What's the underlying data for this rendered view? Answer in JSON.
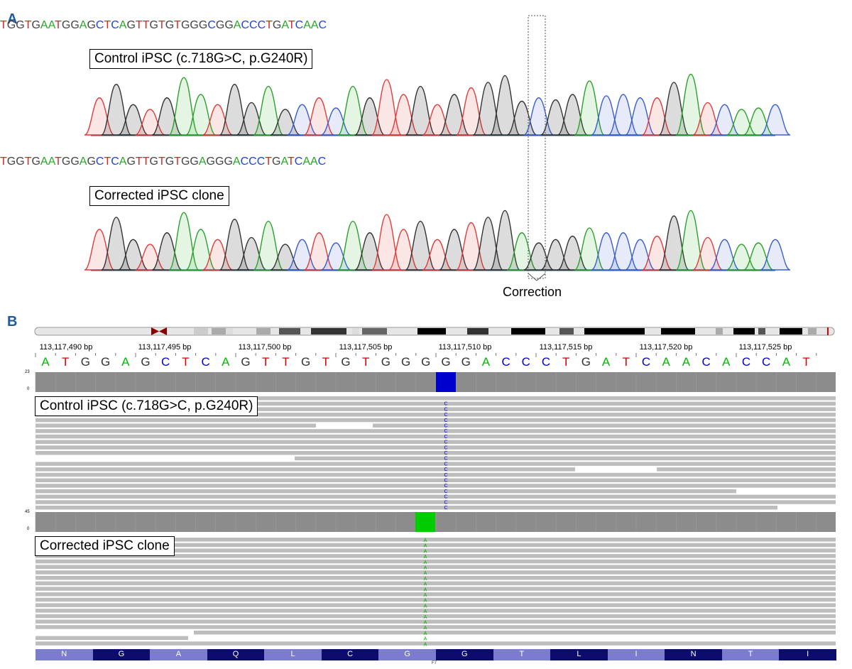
{
  "panel_a": {
    "label": "A",
    "seq_top": [
      "T",
      "G",
      "G",
      "T",
      "G",
      "A",
      "A",
      "T",
      "G",
      "G",
      "A",
      "G",
      "C",
      "T",
      "C",
      "A",
      "G",
      "T",
      "T",
      "G",
      "T",
      "G",
      "T",
      "G",
      "G",
      "G",
      "C",
      "G",
      "G",
      "A",
      "C",
      "C",
      "C",
      "T",
      "G",
      "A",
      "T",
      "C",
      "A",
      "A",
      "C"
    ],
    "seq_bottom": [
      "T",
      "G",
      "G",
      "T",
      "G",
      "A",
      "A",
      "T",
      "G",
      "G",
      "A",
      "G",
      "C",
      "T",
      "C",
      "A",
      "G",
      "T",
      "T",
      "G",
      "T",
      "G",
      "T",
      "G",
      "G",
      "A",
      "G",
      "G",
      "G",
      "A",
      "C",
      "C",
      "C",
      "T",
      "G",
      "A",
      "T",
      "C",
      "A",
      "A",
      "C"
    ],
    "control_label": "Control iPSC (c.718G>C, p.G240R)",
    "corrected_label": "Corrected iPSC clone",
    "correction_label": "Correction",
    "highlight_index": 26
  },
  "panel_b": {
    "label": "B",
    "coords": [
      "113,117,490 bp",
      "113,117,495 bp",
      "113,117,500 bp",
      "113,117,505 bp",
      "113,117,510 bp",
      "113,117,515 bp",
      "113,117,520 bp",
      "113,117,525 bp"
    ],
    "reference": [
      "A",
      "T",
      "G",
      "G",
      "A",
      "G",
      "C",
      "T",
      "C",
      "A",
      "G",
      "T",
      "T",
      "G",
      "T",
      "G",
      "T",
      "G",
      "G",
      "G",
      "G",
      "G",
      "A",
      "C",
      "C",
      "C",
      "T",
      "G",
      "A",
      "T",
      "C",
      "A",
      "A",
      "C",
      "A",
      "C",
      "C",
      "A",
      "T"
    ],
    "control_label": "Control iPSC (c.718G>C, p.G240R)",
    "corrected_label": "Corrected iPSC clone",
    "cov_control_scale": [
      "23",
      "0"
    ],
    "cov_corrected_scale": [
      "45",
      "0"
    ],
    "control_variant_base": "C",
    "corrected_variant_base": "A",
    "amino_acids": [
      "N",
      "G",
      "A",
      "Q",
      "L",
      "C",
      "G",
      "G",
      "T",
      "L",
      "I",
      "N",
      "T",
      "I"
    ],
    "exon_label": "F7"
  },
  "colors": {
    "A": "#22aa22",
    "C": "#2244cc",
    "G": "#444444",
    "T": "#dd2222",
    "igv_A": "#00bb00",
    "igv_C": "#0000cc",
    "igv_G": "#333333",
    "igv_T": "#dd0000",
    "read_gray": "#bdbdbd",
    "coverage_gray": "#8c8c8c"
  }
}
